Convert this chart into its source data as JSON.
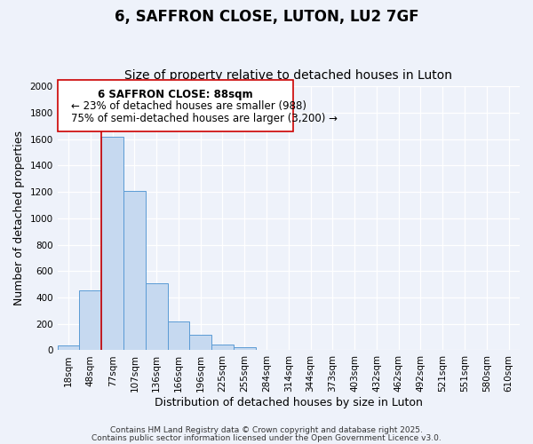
{
  "title": "6, SAFFRON CLOSE, LUTON, LU2 7GF",
  "subtitle": "Size of property relative to detached houses in Luton",
  "xlabel": "Distribution of detached houses by size in Luton",
  "ylabel": "Number of detached properties",
  "bar_labels": [
    "18sqm",
    "48sqm",
    "77sqm",
    "107sqm",
    "136sqm",
    "166sqm",
    "196sqm",
    "225sqm",
    "255sqm",
    "284sqm",
    "314sqm",
    "344sqm",
    "373sqm",
    "403sqm",
    "432sqm",
    "462sqm",
    "492sqm",
    "521sqm",
    "551sqm",
    "580sqm",
    "610sqm"
  ],
  "bar_heights": [
    35,
    455,
    1620,
    1210,
    510,
    220,
    115,
    45,
    20,
    0,
    0,
    0,
    0,
    0,
    0,
    0,
    0,
    0,
    0,
    0,
    0
  ],
  "bar_color": "#c6d9f0",
  "bar_edge_color": "#5b9bd5",
  "ylim": [
    0,
    2000
  ],
  "yticks": [
    0,
    200,
    400,
    600,
    800,
    1000,
    1200,
    1400,
    1600,
    1800,
    2000
  ],
  "vline_x_idx": 2,
  "vline_color": "#cc0000",
  "annotation_line1": "6 SAFFRON CLOSE: 88sqm",
  "annotation_line2": "← 23% of detached houses are smaller (988)",
  "annotation_line3": "75% of semi-detached houses are larger (3,200) →",
  "footer1": "Contains HM Land Registry data © Crown copyright and database right 2025.",
  "footer2": "Contains public sector information licensed under the Open Government Licence v3.0.",
  "background_color": "#eef2fa",
  "plot_bg_color": "#eef2fa",
  "grid_color": "#ffffff",
  "title_fontsize": 12,
  "subtitle_fontsize": 10,
  "axis_label_fontsize": 9,
  "tick_fontsize": 7.5,
  "annotation_fontsize": 8.5,
  "footer_fontsize": 6.5
}
